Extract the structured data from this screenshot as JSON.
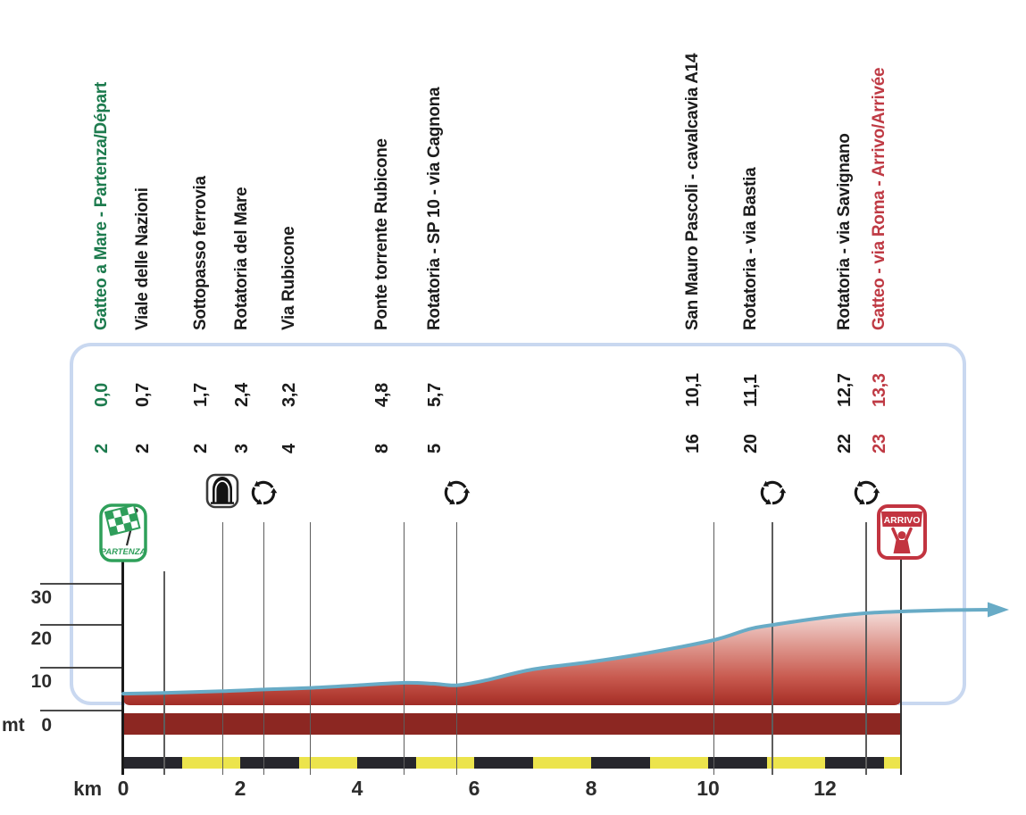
{
  "chart_data": {
    "type": "area",
    "x_axis": {
      "label": "km",
      "ticks": [
        0,
        2,
        4,
        6,
        8,
        10,
        12
      ],
      "max": 13.3
    },
    "y_axis": {
      "label": "mt",
      "ticks": [
        0,
        10,
        20,
        30
      ]
    },
    "waypoints": [
      {
        "name": "Gatteo a Mare - Partenza/Départ",
        "km": 0.0,
        "km_label": "0,0",
        "elevation": 2,
        "icon": "start-flag",
        "accent": "green"
      },
      {
        "name": "Viale delle Nazioni",
        "km": 0.7,
        "km_label": "0,7",
        "elevation": 2,
        "icon": "none",
        "accent": "black"
      },
      {
        "name": "Sottopasso ferrovia",
        "km": 1.7,
        "km_label": "1,7",
        "elevation": 2,
        "icon": "tunnel",
        "accent": "black"
      },
      {
        "name": "Rotatoria del Mare",
        "km": 2.4,
        "km_label": "2,4",
        "elevation": 3,
        "icon": "roundabout",
        "accent": "black"
      },
      {
        "name": "Via Rubicone",
        "km": 3.2,
        "km_label": "3,2",
        "elevation": 4,
        "icon": "none",
        "accent": "black"
      },
      {
        "name": "Ponte torrente Rubicone",
        "km": 4.8,
        "km_label": "4,8",
        "elevation": 8,
        "icon": "none",
        "accent": "black"
      },
      {
        "name": "Rotatoria - SP 10 - via Cagnona",
        "km": 5.7,
        "km_label": "5,7",
        "elevation": 5,
        "icon": "roundabout",
        "accent": "black"
      },
      {
        "name": "San Mauro Pascoli - cavalcavia A14",
        "km": 10.1,
        "km_label": "10,1",
        "elevation": 16,
        "icon": "none",
        "accent": "black"
      },
      {
        "name": "Rotatoria - via Bastia",
        "km": 11.1,
        "km_label": "11,1",
        "elevation": 20,
        "icon": "roundabout",
        "accent": "black"
      },
      {
        "name": "Rotatoria - via Savignano",
        "km": 12.7,
        "km_label": "12,7",
        "elevation": 22,
        "icon": "roundabout",
        "accent": "black"
      },
      {
        "name": "Gatteo - via Roma - Arrivo/Arrivée",
        "km": 13.3,
        "km_label": "13,3",
        "elevation": 23,
        "icon": "finish",
        "accent": "red"
      }
    ],
    "profile_draw": [
      [
        0,
        3.8
      ],
      [
        0.7,
        4.0
      ],
      [
        1.7,
        4.4
      ],
      [
        2.4,
        4.8
      ],
      [
        3.2,
        5.2
      ],
      [
        4.0,
        5.8
      ],
      [
        4.8,
        6.4
      ],
      [
        5.3,
        6.2
      ],
      [
        5.7,
        5.8
      ],
      [
        6.2,
        7.0
      ],
      [
        7.0,
        9.6
      ],
      [
        8.0,
        11.4
      ],
      [
        9.0,
        13.6
      ],
      [
        10.1,
        16.6
      ],
      [
        10.7,
        19.2
      ],
      [
        11.1,
        20.2
      ],
      [
        12.0,
        22.0
      ],
      [
        12.7,
        23.0
      ],
      [
        13.3,
        23.4
      ]
    ],
    "km_bar_segments": [
      {
        "from": 0,
        "to": 1,
        "color": "dark"
      },
      {
        "from": 1,
        "to": 2,
        "color": "yellow"
      },
      {
        "from": 2,
        "to": 3,
        "color": "dark"
      },
      {
        "from": 3,
        "to": 4,
        "color": "yellow"
      },
      {
        "from": 4,
        "to": 5,
        "color": "dark"
      },
      {
        "from": 5,
        "to": 6,
        "color": "yellow"
      },
      {
        "from": 6,
        "to": 7,
        "color": "dark"
      },
      {
        "from": 7,
        "to": 8,
        "color": "yellow"
      },
      {
        "from": 8,
        "to": 9,
        "color": "dark"
      },
      {
        "from": 9,
        "to": 10,
        "color": "yellow"
      },
      {
        "from": 10,
        "to": 11,
        "color": "dark"
      },
      {
        "from": 11,
        "to": 12,
        "color": "yellow"
      },
      {
        "from": 12,
        "to": 13,
        "color": "dark"
      },
      {
        "from": 13,
        "to": 13.3,
        "color": "yellow"
      }
    ],
    "colors": {
      "green": "#1d7b4e",
      "red": "#bf3a44",
      "profile_line": "#68abc6",
      "fill_dark": "#9e2b26",
      "band": "#8c2722",
      "bar_yellow": "#ece44c",
      "bar_dark": "#26262c",
      "box_border": "#c9d8f0",
      "gridline": "#5d5d5d"
    },
    "icons": {
      "start_label": "PARTENZA",
      "finish_label": "ARRIVO"
    }
  }
}
